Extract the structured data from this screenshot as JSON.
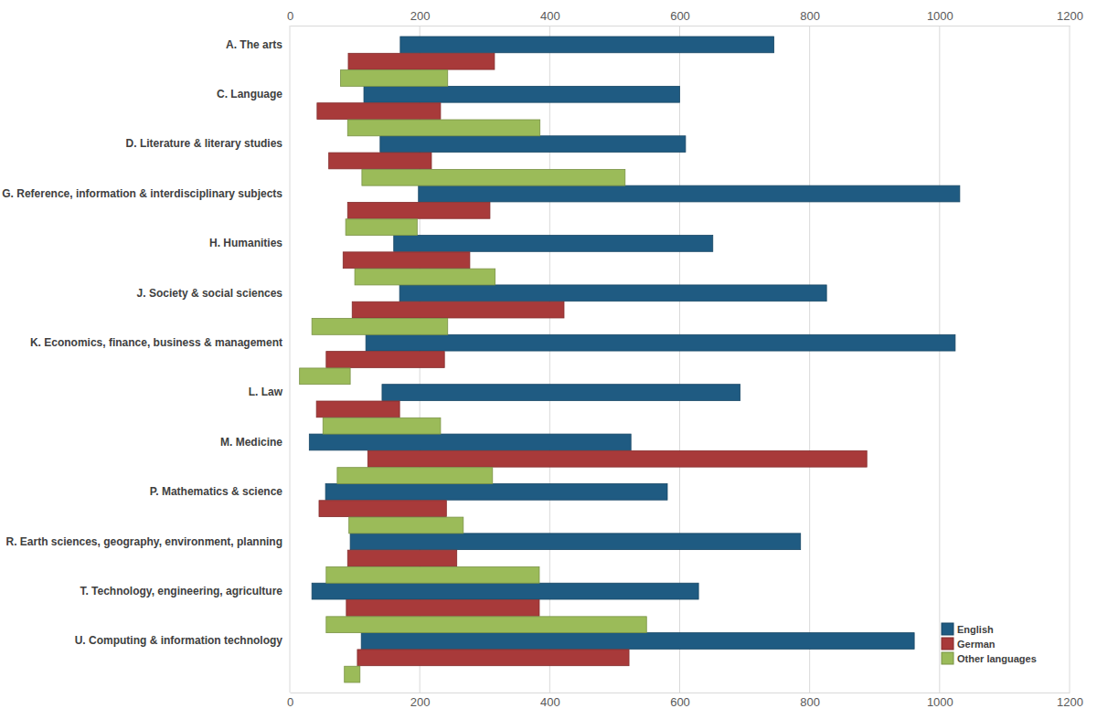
{
  "chart_data": {
    "type": "bar",
    "orientation": "horizontal",
    "categories": [
      "A. The arts",
      "C. Language",
      "D. Literature & literary studies",
      "G. Reference, information & interdisciplinary subjects",
      "H. Humanities",
      "J. Society & social sciences",
      "K. Economics, finance, business & management",
      "L. Law",
      "M. Medicine",
      "P. Mathematics & science",
      "R. Earth sciences, geography, environment, planning",
      "T. Technology, engineering, agriculture",
      "U. Computing & information technology"
    ],
    "series": [
      {
        "name": "English",
        "color": "#1f5b82",
        "values": [
          [
            170,
            745
          ],
          [
            114,
            600
          ],
          [
            139,
            609
          ],
          [
            198,
            1031
          ],
          [
            160,
            651
          ],
          [
            169,
            826
          ],
          [
            117,
            1024
          ],
          [
            142,
            693
          ],
          [
            30,
            525
          ],
          [
            55,
            581
          ],
          [
            93,
            786
          ],
          [
            34,
            629
          ],
          [
            110,
            961
          ]
        ]
      },
      {
        "name": "German",
        "color": "#a83a3a",
        "values": [
          [
            90,
            315
          ],
          [
            42,
            232
          ],
          [
            60,
            218
          ],
          [
            89,
            308
          ],
          [
            82,
            277
          ],
          [
            96,
            422
          ],
          [
            56,
            238
          ],
          [
            41,
            169
          ],
          [
            120,
            888
          ],
          [
            45,
            241
          ],
          [
            89,
            257
          ],
          [
            87,
            384
          ],
          [
            104,
            522
          ]
        ]
      },
      {
        "name": "Other languages",
        "color": "#9bbb59",
        "values": [
          [
            78,
            243
          ],
          [
            89,
            385
          ],
          [
            111,
            516
          ],
          [
            86,
            196
          ],
          [
            100,
            316
          ],
          [
            34,
            243
          ],
          [
            15,
            93
          ],
          [
            51,
            232
          ],
          [
            73,
            312
          ],
          [
            91,
            267
          ],
          [
            56,
            384
          ],
          [
            56,
            549
          ],
          [
            84,
            108
          ]
        ]
      }
    ],
    "xlim": [
      0,
      1200
    ],
    "xticks": [
      0,
      200,
      400,
      600,
      800,
      1000,
      1200
    ],
    "grid": true,
    "legend": "lower right"
  }
}
